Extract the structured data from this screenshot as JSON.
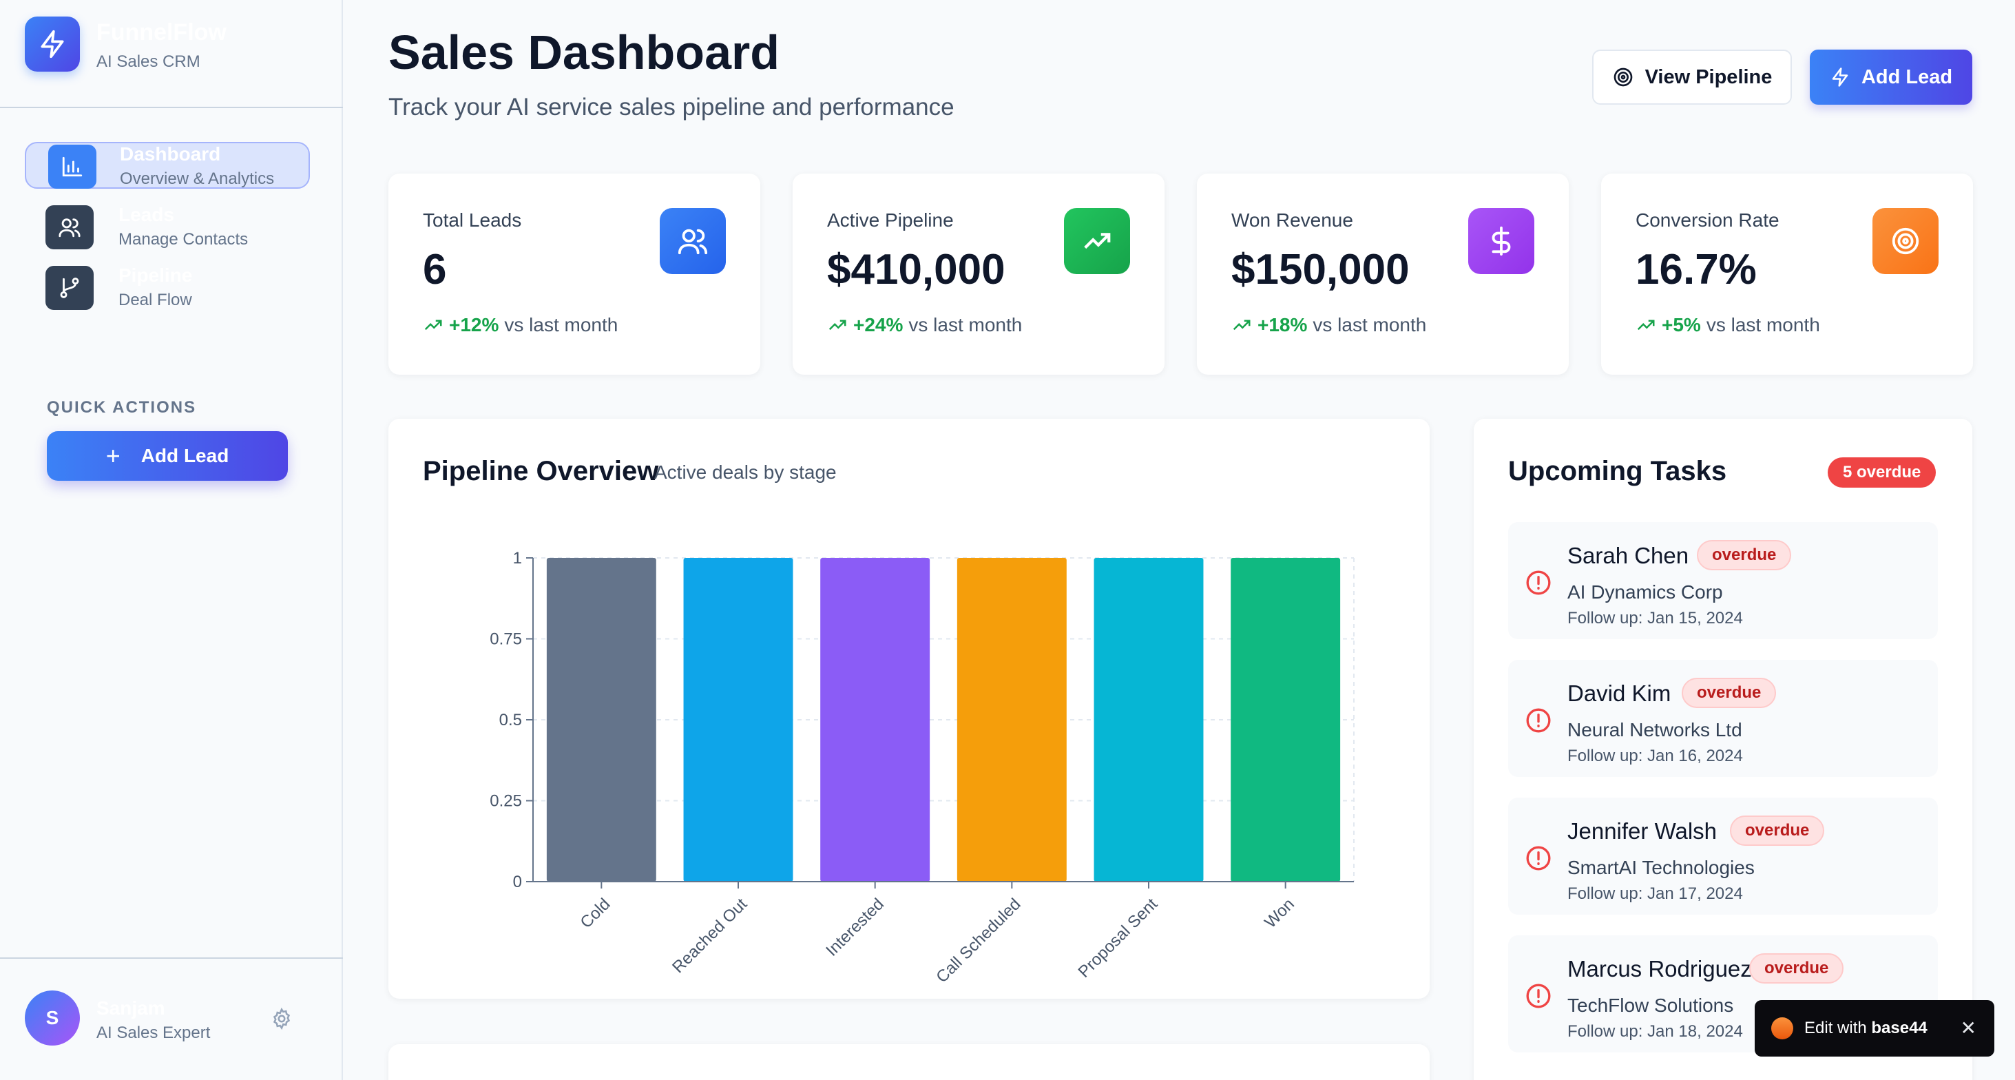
{
  "brand": {
    "name": "FunnelFlow",
    "subtitle": "AI Sales CRM"
  },
  "sidebar": {
    "items": [
      {
        "label": "Dashboard",
        "sub": "Overview & Analytics",
        "icon": "bar-chart-icon",
        "active": true
      },
      {
        "label": "Leads",
        "sub": "Manage Contacts",
        "icon": "users-icon",
        "active": false
      },
      {
        "label": "Pipeline",
        "sub": "Deal Flow",
        "icon": "git-branch-icon",
        "active": false
      }
    ],
    "quick_actions_title": "QUICK ACTIONS",
    "quick_add_label": "Add Lead"
  },
  "user": {
    "initial": "S",
    "name": "Sanjam",
    "role": "AI Sales Expert"
  },
  "header": {
    "title": "Sales Dashboard",
    "subtitle": "Track your AI service sales pipeline and performance",
    "view_pipeline_label": "View Pipeline",
    "add_lead_label": "Add Lead"
  },
  "stats": [
    {
      "label": "Total Leads",
      "value": "6",
      "change": "+12%",
      "suffix": "vs last month",
      "icon": "users-icon",
      "color": "#3b82f6"
    },
    {
      "label": "Active Pipeline",
      "value": "$410,000",
      "change": "+24%",
      "suffix": "vs last month",
      "icon": "trending-up-icon",
      "color": "#16a34a"
    },
    {
      "label": "Won Revenue",
      "value": "$150,000",
      "change": "+18%",
      "suffix": "vs last month",
      "icon": "dollar-icon",
      "color": "#9333ea"
    },
    {
      "label": "Conversion Rate",
      "value": "16.7%",
      "change": "+5%",
      "suffix": "vs last month",
      "icon": "target-icon",
      "color": "#f97316"
    }
  ],
  "pipeline": {
    "title": "Pipeline Overview",
    "subtitle": "Active deals by stage"
  },
  "chart_data": {
    "type": "bar",
    "categories": [
      "Cold",
      "Reached Out",
      "Interested",
      "Call Scheduled",
      "Proposal Sent",
      "Won"
    ],
    "values": [
      1,
      1,
      1,
      1,
      1,
      1
    ],
    "colors": [
      "#64748b",
      "#0ea5e9",
      "#8b5cf6",
      "#f59e0b",
      "#06b6d4",
      "#10b981"
    ],
    "yticks": [
      "0",
      "0.25",
      "0.5",
      "0.75",
      "1"
    ],
    "ylim": [
      0,
      1
    ],
    "grid": true
  },
  "tasks": {
    "title": "Upcoming Tasks",
    "overdue_count": "5 overdue",
    "items": [
      {
        "name": "Sarah Chen",
        "badge": "overdue",
        "company": "AI Dynamics Corp",
        "follow": "Follow up: Jan 15, 2024"
      },
      {
        "name": "David Kim",
        "badge": "overdue",
        "company": "Neural Networks Ltd",
        "follow": "Follow up: Jan 16, 2024"
      },
      {
        "name": "Jennifer Walsh",
        "badge": "overdue",
        "company": "SmartAI Technologies",
        "follow": "Follow up: Jan 17, 2024"
      },
      {
        "name": "Marcus Rodriguez",
        "badge": "overdue",
        "company": "TechFlow Solutions",
        "follow": "Follow up: Jan 18, 2024"
      }
    ]
  },
  "toast": {
    "prefix": "Edit with",
    "brand": "base44"
  }
}
